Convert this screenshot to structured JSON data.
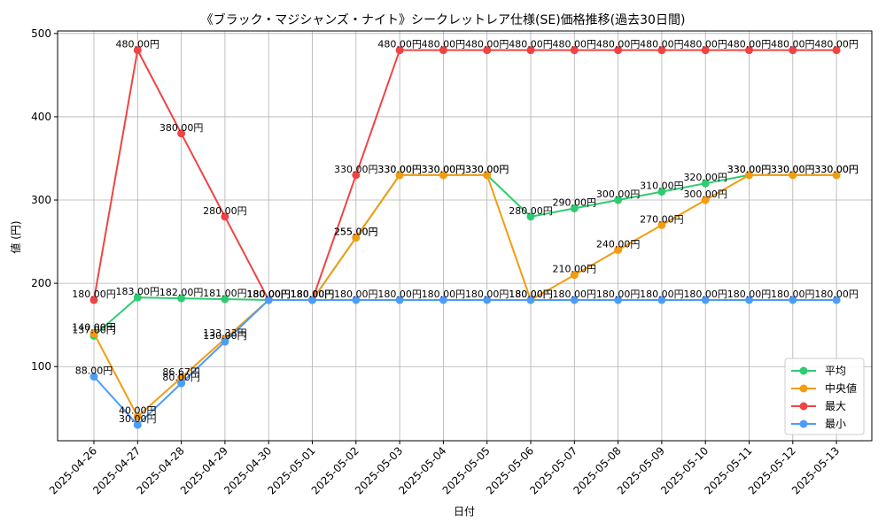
{
  "chart_data": {
    "type": "line",
    "title": "《ブラック・マジシャンズ・ナイト》シークレットレア仕様(SE)価格推移(過去30日間)",
    "xlabel": "日付",
    "ylabel": "値 (円)",
    "ylim": [
      11,
      503
    ],
    "yticks": [
      100,
      200,
      300,
      400,
      500
    ],
    "grid": true,
    "legend_position": "lower-right",
    "label_suffix": "円",
    "categories": [
      "2025-04-26",
      "2025-04-27",
      "2025-04-28",
      "2025-04-29",
      "2025-04-30",
      "2025-05-01",
      "2025-05-02",
      "2025-05-03",
      "2025-05-04",
      "2025-05-05",
      "2025-05-06",
      "2025-05-07",
      "2025-05-08",
      "2025-05-09",
      "2025-05-10",
      "2025-05-11",
      "2025-05-12",
      "2025-05-13"
    ],
    "series": [
      {
        "name": "平均",
        "color": "#2ecc71",
        "values": [
          137.0,
          183.0,
          182.0,
          181.0,
          180.0,
          180.0,
          255.0,
          330.0,
          330.0,
          330.0,
          280.0,
          290.0,
          300.0,
          310.0,
          320.0,
          330.0,
          330.0,
          330.0
        ]
      },
      {
        "name": "中央値",
        "color": "#f39c12",
        "values": [
          140.0,
          40.0,
          86.67,
          133.33,
          180.0,
          180.0,
          255.0,
          330.0,
          330.0,
          330.0,
          180.0,
          210.0,
          240.0,
          270.0,
          300.0,
          330.0,
          330.0,
          330.0
        ]
      },
      {
        "name": "最大",
        "color": "#ef4444",
        "values": [
          180.0,
          480.0,
          380.0,
          280.0,
          180.0,
          180.0,
          330.0,
          480.0,
          480.0,
          480.0,
          480.0,
          480.0,
          480.0,
          480.0,
          480.0,
          480.0,
          480.0,
          480.0
        ]
      },
      {
        "name": "最小",
        "color": "#4d9cf8",
        "values": [
          88.0,
          30.0,
          80.0,
          130.0,
          180.0,
          180.0,
          180.0,
          180.0,
          180.0,
          180.0,
          180.0,
          180.0,
          180.0,
          180.0,
          180.0,
          180.0,
          180.0,
          180.0
        ]
      }
    ]
  }
}
